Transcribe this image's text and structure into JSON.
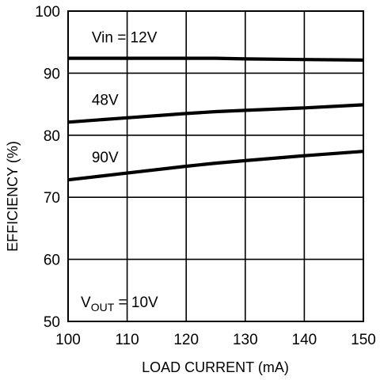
{
  "chart_data": {
    "type": "line",
    "title": "",
    "xlabel": "LOAD CURRENT (mA)",
    "ylabel": "EFFICIENCY (%)",
    "xlim": [
      100,
      150
    ],
    "ylim": [
      50,
      100
    ],
    "xticks": [
      100,
      110,
      120,
      130,
      140,
      150
    ],
    "yticks": [
      50,
      60,
      70,
      80,
      90,
      100
    ],
    "grid": true,
    "line_color": "#000000",
    "series": [
      {
        "name": "Vin = 12V",
        "x": [
          100,
          110,
          120,
          125,
          130,
          140,
          150
        ],
        "y": [
          92.4,
          92.4,
          92.4,
          92.4,
          92.3,
          92.2,
          92.1
        ]
      },
      {
        "name": "48V",
        "x": [
          100,
          110,
          120,
          125,
          130,
          140,
          150
        ],
        "y": [
          82.1,
          82.8,
          83.5,
          83.8,
          84.0,
          84.4,
          84.9
        ]
      },
      {
        "name": "90V",
        "x": [
          100,
          110,
          120,
          125,
          130,
          140,
          150
        ],
        "y": [
          72.8,
          73.9,
          75.0,
          75.5,
          75.9,
          76.7,
          77.4
        ]
      }
    ],
    "annotation": {
      "main": "V",
      "sub": "OUT",
      "rest": " = 10V"
    }
  }
}
